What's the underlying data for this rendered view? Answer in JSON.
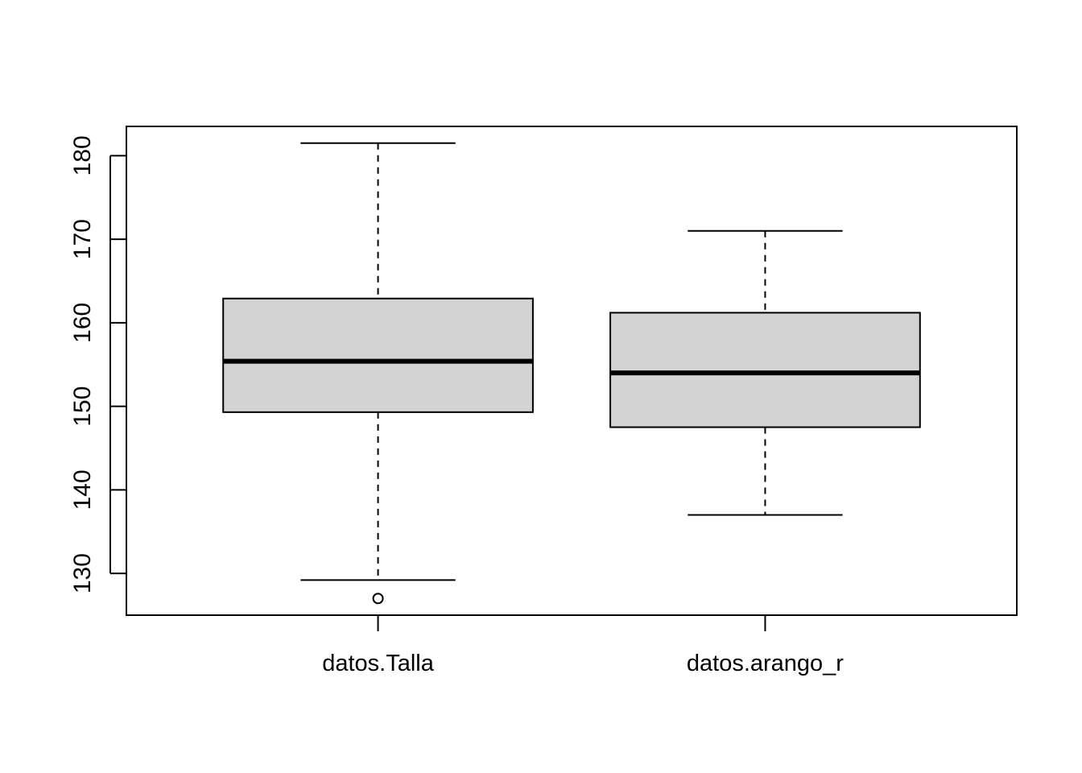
{
  "chart_data": {
    "type": "boxplot",
    "title": "",
    "xlabel": "",
    "ylabel": "",
    "ylim": [
      125,
      183.5
    ],
    "yticks": [
      130,
      140,
      150,
      160,
      170,
      180
    ],
    "categories": [
      "datos.Talla",
      "datos.arango_r"
    ],
    "boxes": [
      {
        "category": "datos.Talla",
        "whisker_low": 129.2,
        "q1": 149.3,
        "median": 155.4,
        "q3": 162.9,
        "whisker_high": 181.5,
        "outliers": [
          127.0
        ]
      },
      {
        "category": "datos.arango_r",
        "whisker_low": 137.0,
        "q1": 147.5,
        "median": 154.0,
        "q3": 161.2,
        "whisker_high": 171.0,
        "outliers": []
      }
    ],
    "box_fill": "#d3d3d3",
    "line_color": "#000000",
    "grid": false
  }
}
